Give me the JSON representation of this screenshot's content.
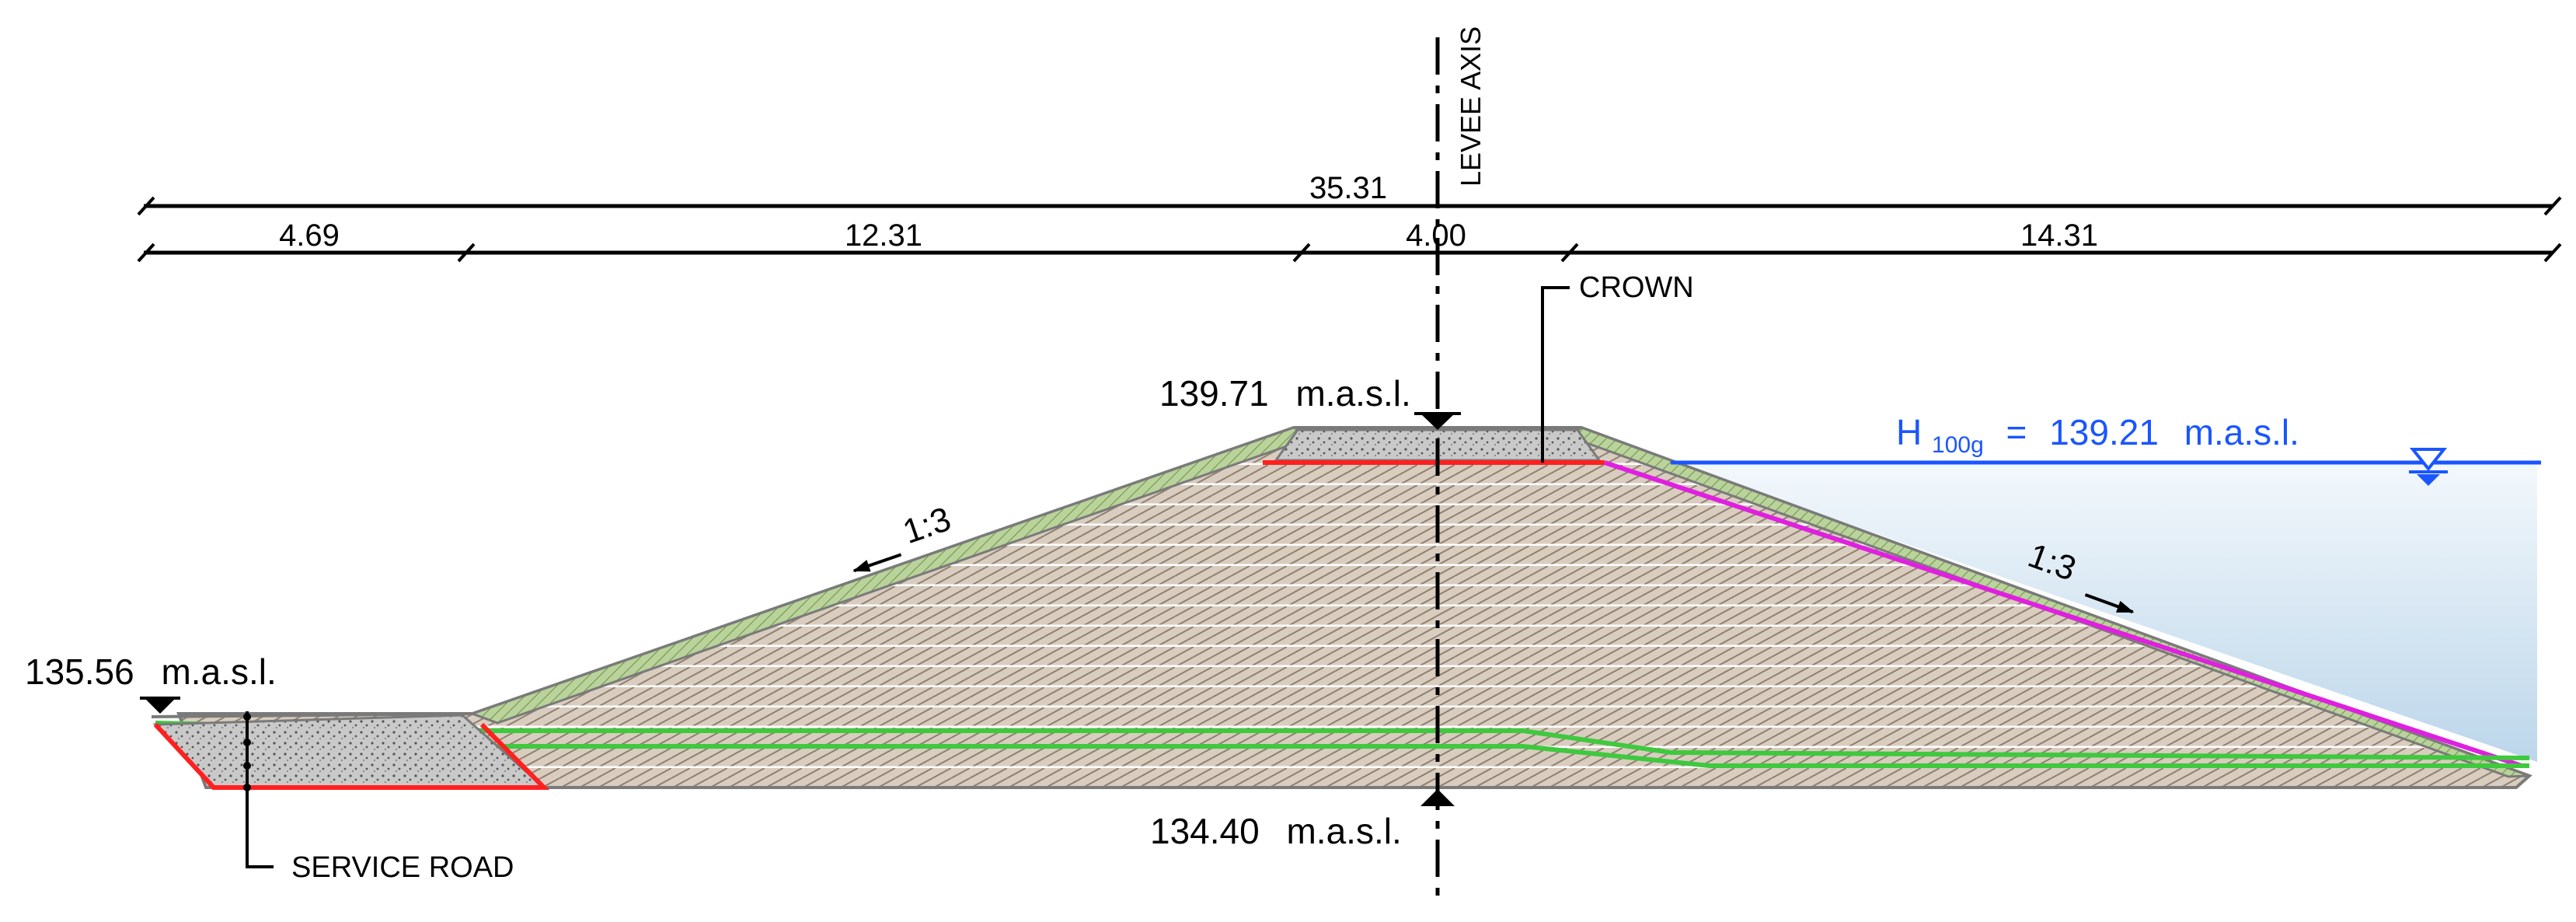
{
  "drawing": {
    "axis_label": "LEVEE AXIS",
    "crown_label": "CROWN",
    "service_road_label": "SERVICE ROAD",
    "dimensions": {
      "total": "35.31",
      "service_road_width": "4.69",
      "landside_slope_width": "12.31",
      "crown_width": "4.00",
      "waterside_slope_width": "14.31"
    },
    "elevations": {
      "crown": "139.71",
      "service_road": "135.56",
      "base": "134.40",
      "unit": "m.a.s.l."
    },
    "water_level": {
      "symbol": "H",
      "subscript": "100g",
      "equals": "=",
      "value": "139.21",
      "unit": "m.a.s.l."
    },
    "slopes": {
      "landside": "1:3",
      "waterside": "1:3"
    },
    "colors": {
      "water_line": "#1a56ff",
      "water_fill": "#cfe2f0",
      "embankment_fill": "#d9cdbf",
      "topsoil": "#b9d39a",
      "geomembrane": "#e020e0",
      "drain": "#3ec93e",
      "crown_base": "#ff2020",
      "road_outline": "#ff2020"
    }
  }
}
